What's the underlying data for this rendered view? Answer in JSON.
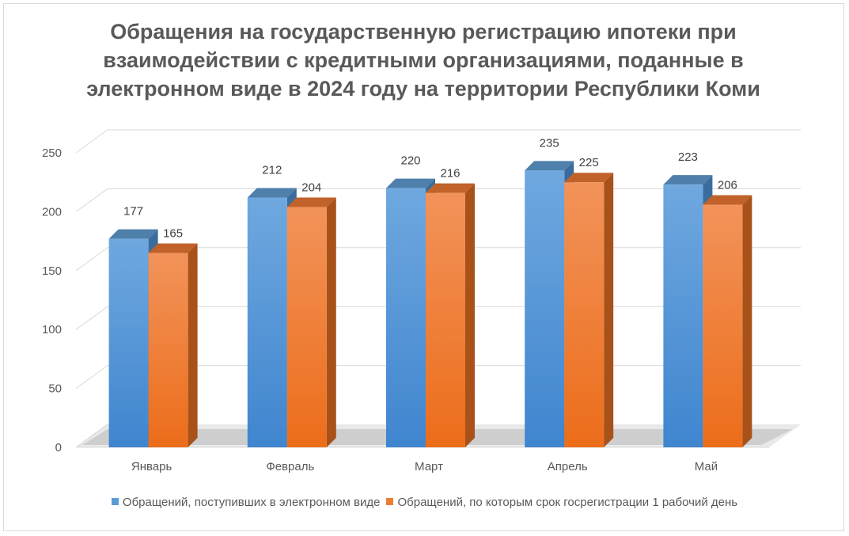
{
  "chart_data": {
    "type": "bar",
    "title": "Обращения на государственную регистрацию ипотеки при\nвзаимодействии с кредитными организациями, поданные в\nэлектронном виде в 2024 году на территории Республики Коми",
    "categories": [
      "Январь",
      "Февраль",
      "Март",
      "Апрель",
      "Май"
    ],
    "series": [
      {
        "name": "Обращений, поступивших в электронном виде",
        "values": [
          177,
          212,
          220,
          235,
          223
        ],
        "color": "#5b9bd5"
      },
      {
        "name": "Обращений, по которым срок госрегистрации 1 рабочий день",
        "values": [
          165,
          204,
          216,
          225,
          206
        ],
        "color": "#ed7d31"
      }
    ],
    "ylim": [
      0,
      250
    ],
    "yticks": [
      0,
      50,
      100,
      150,
      200,
      250
    ],
    "grid": true,
    "three_d": true,
    "data_labels": true,
    "legend_position": "bottom"
  }
}
